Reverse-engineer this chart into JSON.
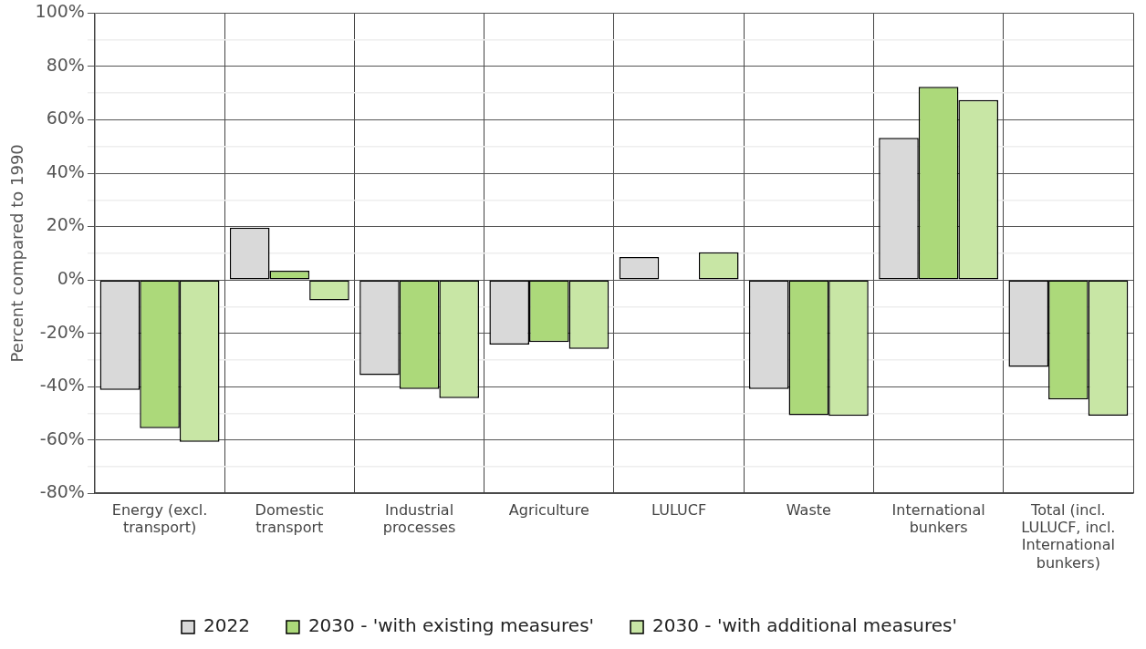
{
  "chart_data": {
    "type": "bar",
    "ylabel": "Percent compared to 1990",
    "categories": [
      "Energy (excl. transport)",
      "Domestic transport",
      "Industrial processes",
      "Agriculture",
      "LULUCF",
      "Waste",
      "International bunkers",
      "Total (incl. LULUCF, incl. International bunkers)"
    ],
    "series": [
      {
        "name": "2022",
        "color": "#d9d9d9",
        "values": [
          -41.2,
          19.6,
          -35.7,
          -24.2,
          8.6,
          -40.9,
          53.2,
          -32.6
        ]
      },
      {
        "name": "2030 - 'with existing measures'",
        "color": "#acd97a",
        "values": [
          -55.6,
          3.4,
          -40.9,
          -23.3,
          null,
          -50.7,
          72.4,
          -44.8
        ]
      },
      {
        "name": "2030 - 'with additional measures'",
        "color": "#c8e6a5",
        "values": [
          -60.7,
          -7.7,
          -44.3,
          -25.9,
          10.4,
          -51.0,
          67.4,
          -50.9
        ]
      }
    ],
    "ylim": [
      -80,
      100
    ],
    "yticks": [
      {
        "value": -80,
        "label": "-80%"
      },
      {
        "value": -70,
        "label": null
      },
      {
        "value": -60,
        "label": "-60%"
      },
      {
        "value": -50,
        "label": null
      },
      {
        "value": -40,
        "label": "-40%"
      },
      {
        "value": -30,
        "label": null
      },
      {
        "value": -20,
        "label": "-20%"
      },
      {
        "value": -10,
        "label": null
      },
      {
        "value": 0,
        "label": "0%"
      },
      {
        "value": 10,
        "label": null
      },
      {
        "value": 20,
        "label": "20%"
      },
      {
        "value": 30,
        "label": null
      },
      {
        "value": 40,
        "label": "40%"
      },
      {
        "value": 50,
        "label": null
      },
      {
        "value": 60,
        "label": "60%"
      },
      {
        "value": 70,
        "label": null
      },
      {
        "value": 80,
        "label": "80%"
      },
      {
        "value": 90,
        "label": null
      },
      {
        "value": 100,
        "label": "100%"
      }
    ],
    "grid": true,
    "legend": "bottom"
  }
}
